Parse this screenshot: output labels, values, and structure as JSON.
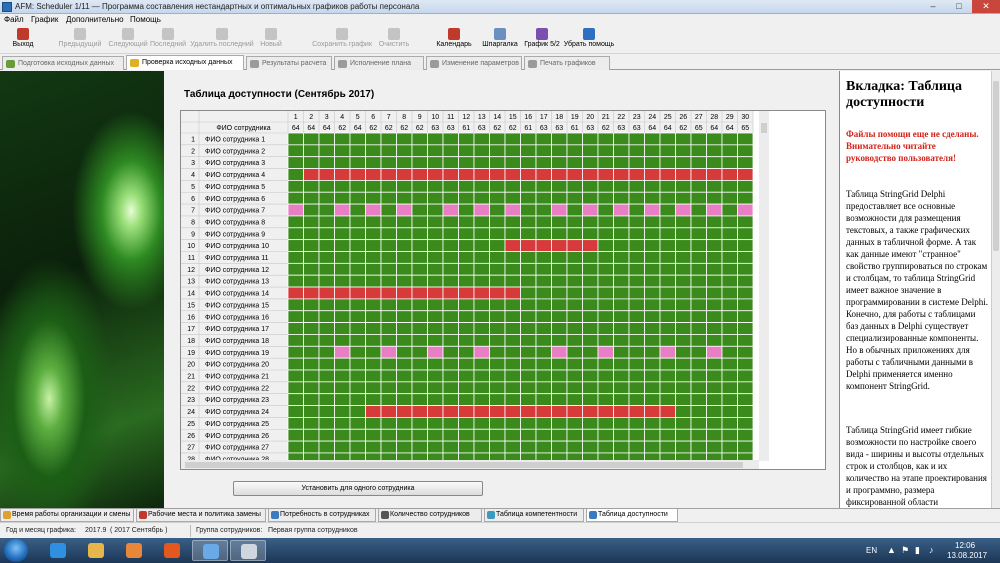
{
  "window": {
    "title": "AFM: Scheduler 1/11 — Программа составления  нестандартных и оптимальных графиков работы персонала",
    "min": "–",
    "max": "□",
    "close": "✕"
  },
  "menu": [
    "Файл",
    "График",
    "Дополнительно",
    "Помощь"
  ],
  "toolbar": [
    {
      "label": "Выход",
      "icon": "exit-icon",
      "enabled": true,
      "color": "#c0392b"
    },
    {
      "label": "Предыдущий",
      "icon": "prev-icon",
      "enabled": false
    },
    {
      "label": "Следующий",
      "icon": "next-icon",
      "enabled": false
    },
    {
      "label": "Последний",
      "icon": "last-icon",
      "enabled": false
    },
    {
      "label": "Удалить последний",
      "icon": "delete-last-icon",
      "enabled": false
    },
    {
      "label": "Новый",
      "icon": "new-icon",
      "enabled": false
    },
    {
      "label": "Сохранить график",
      "icon": "save-schedule-icon",
      "enabled": false
    },
    {
      "label": "Очистить",
      "icon": "clear-icon",
      "enabled": false
    },
    {
      "label": "Календарь",
      "icon": "calendar-icon",
      "enabled": true,
      "color": "#c0392b"
    },
    {
      "label": "Шпаргалка",
      "icon": "cheatsheet-icon",
      "enabled": true,
      "color": "#6b8fbf"
    },
    {
      "label": "График 5/2",
      "icon": "chart-icon",
      "enabled": true,
      "color": "#7a4fb0"
    },
    {
      "label": "Убрать помощь",
      "icon": "help-icon",
      "enabled": true,
      "color": "#2f6fc0"
    }
  ],
  "tabs_top": [
    {
      "label": "Подготовка исходных данных",
      "active": false,
      "icon": "prepare-icon"
    },
    {
      "label": "Проверка исходных данных",
      "active": true,
      "icon": "warning-icon"
    },
    {
      "label": "Результаты расчета",
      "active": false,
      "icon": "results-icon"
    },
    {
      "label": "Исполнение плана",
      "active": false,
      "icon": "execution-icon"
    },
    {
      "label": "Изменение параметров",
      "active": false,
      "icon": "params-icon"
    },
    {
      "label": "Печать графиков",
      "active": false,
      "icon": "print-icon"
    }
  ],
  "grid": {
    "title": "Таблица доступности (Сентябрь 2017)",
    "name_header": "ФИО сотрудника",
    "days": [
      1,
      2,
      3,
      4,
      5,
      6,
      7,
      8,
      9,
      10,
      11,
      12,
      13,
      14,
      15,
      16,
      17,
      18,
      19,
      20,
      21,
      22,
      23,
      24,
      25,
      26,
      27,
      28,
      29,
      30
    ],
    "totals": [
      64,
      64,
      64,
      62,
      64,
      62,
      62,
      62,
      62,
      63,
      63,
      61,
      63,
      62,
      62,
      61,
      63,
      63,
      61,
      63,
      62,
      63,
      63,
      64,
      64,
      62,
      65,
      64,
      64,
      65
    ],
    "row_name": "ФИО сотрудника",
    "visible_rows": 28,
    "colors": {
      "available": "#3a8a1c",
      "unavailable": "#d73a3a",
      "partial": "#e87ec3",
      "header_bg": "#f0f0f0",
      "border": "#ffffff"
    },
    "red_ranges": [
      {
        "row": 4,
        "from": 2,
        "to": 30
      },
      {
        "row": 10,
        "from": 15,
        "to": 20
      },
      {
        "row": 14,
        "from": 1,
        "to": 15
      },
      {
        "row": 24,
        "from": 6,
        "to": 25
      }
    ],
    "pink_cells": [
      {
        "row": 7,
        "days": [
          1,
          4,
          6,
          8,
          11,
          13,
          15,
          18,
          20,
          22,
          24,
          26,
          28,
          30
        ]
      },
      {
        "row": 19,
        "days": [
          4,
          7,
          10,
          13,
          18,
          21,
          25,
          28
        ]
      }
    ]
  },
  "set_one_button": "Установить для одного сотрудника",
  "help": {
    "title": "Вкладка: Таблица доступности",
    "warning": "Файлы помощи еще не сделаны. Внимательно читайте руководство пользователя!",
    "p1": "Таблица StringGrid Delphi предоставляет все основные возможности для размещения текстовых, а также графических данных в табличной форме. А так как данные имеют \"странное\" свойство группироваться по строкам и столбцам, то таблица StringGrid имеет важное значение в программировании в системе Delphi. Конечно, для работы с таблицами баз данных в Delphi существует специализированные компоненты. Но в обычных приложениях для работы с табличными данными в Delphi применяется именно компонент StringGrid.",
    "p2": "Таблица StringGrid имеет гибкие возможности по настройке своего вида - ширины и высоты отдельных строк и столбцов, как и их количество на этапе проектирования и программно, размера фиксированной области"
  },
  "tabs_bottom": [
    {
      "label": "Время работы организации и смены",
      "active": false,
      "icon": "clock-icon"
    },
    {
      "label": "Рабочие места и политика замены",
      "active": false,
      "icon": "workplaces-icon"
    },
    {
      "label": "Потребность в сотрудниках",
      "active": false,
      "icon": "demand-icon"
    },
    {
      "label": "Количество сотрудников",
      "active": false,
      "icon": "staff-count-icon"
    },
    {
      "label": "Таблица компетентности",
      "active": false,
      "icon": "competence-icon"
    },
    {
      "label": "Таблица доступности",
      "active": true,
      "icon": "availability-icon"
    }
  ],
  "status": {
    "month_label": "Год и месяц графика:",
    "month_value": "2017.9",
    "month_name": "( 2017  Сентябрь )",
    "group_label": "Группа сотрудников:",
    "group_value": "Первая группа сотрудников"
  },
  "taskbar": {
    "lang": "EN",
    "time": "12:06",
    "date": "13.08.2017",
    "apps": [
      {
        "name": "ie-icon",
        "color": "#2f8fe0"
      },
      {
        "name": "folder-icon",
        "color": "#e7b64a"
      },
      {
        "name": "media-player-icon",
        "color": "#e8863a"
      },
      {
        "name": "firefox-icon",
        "color": "#e2581e"
      },
      {
        "name": "scheduler-app-icon",
        "color": "#6aa9e8"
      },
      {
        "name": "scheduler-window-icon",
        "color": "#cfd6de"
      }
    ]
  }
}
